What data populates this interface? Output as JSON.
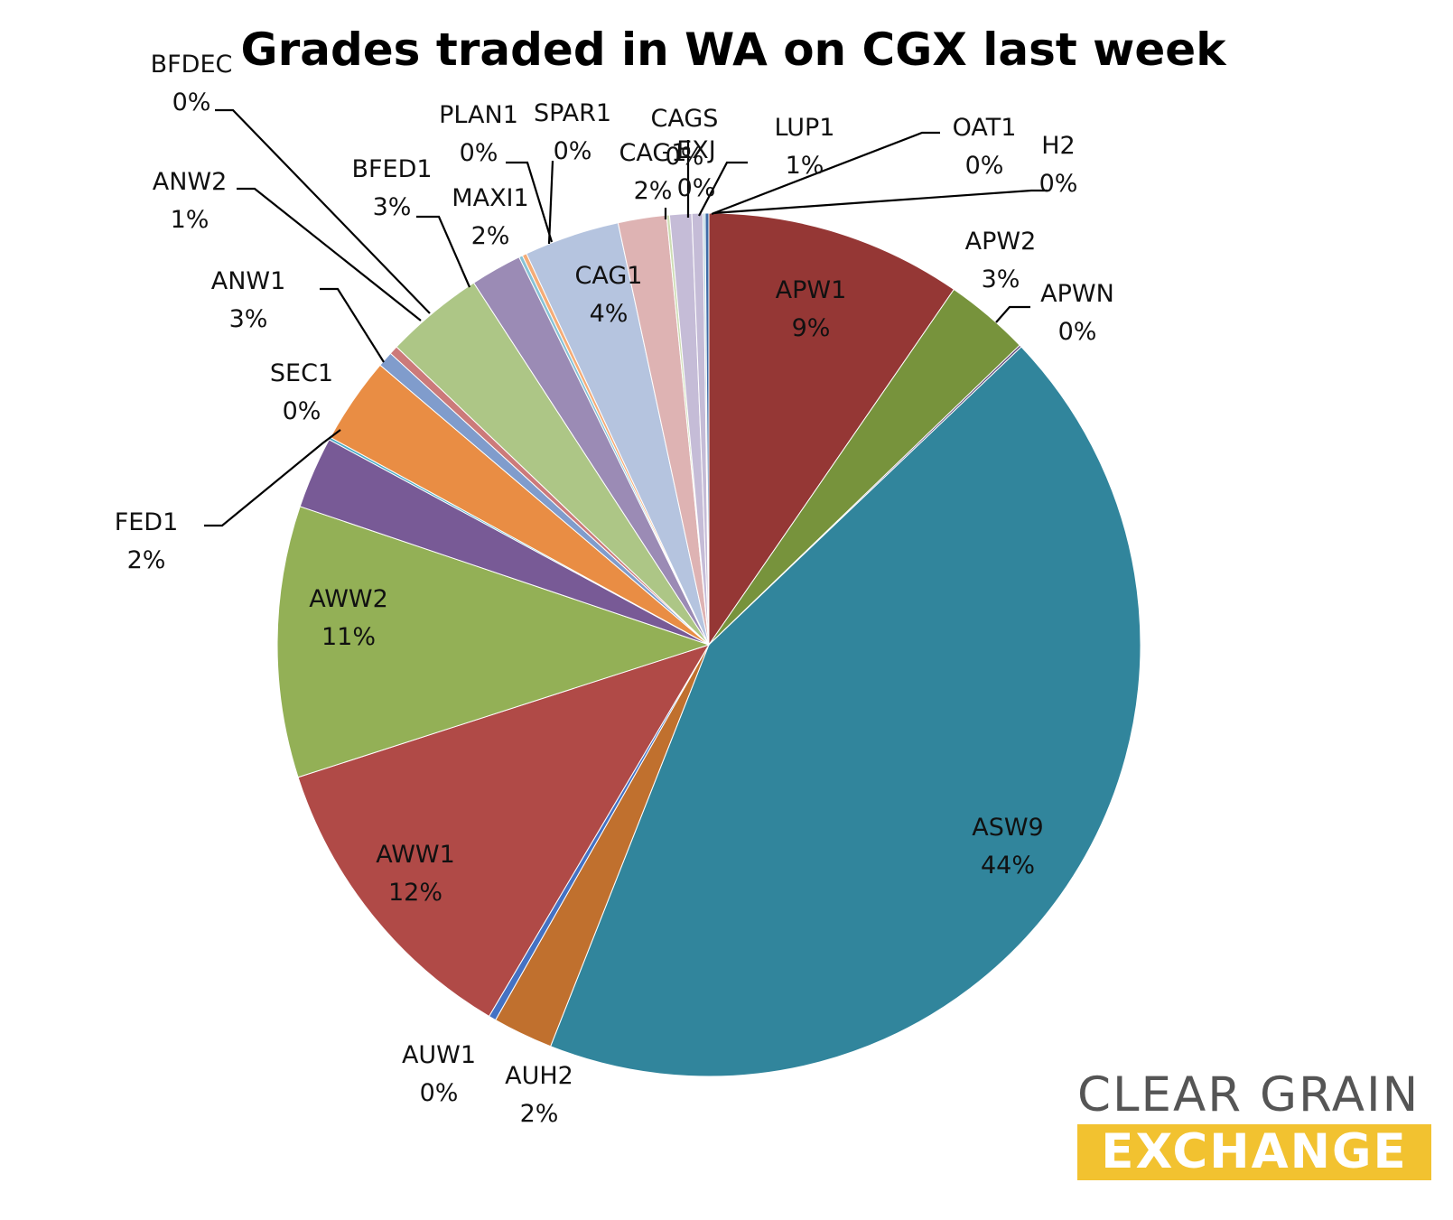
{
  "chart_data": {
    "type": "pie",
    "title": "Grades traded in WA on CGX last week",
    "slices": [
      {
        "name": "APW1",
        "value": 9,
        "label": "9%",
        "color": "#953735"
      },
      {
        "name": "APW2",
        "value": 3,
        "label": "3%",
        "color": "#77933c"
      },
      {
        "name": "APWN",
        "value": 0,
        "label": "0%",
        "color": "#5f497a"
      },
      {
        "name": "ASW9",
        "value": 44,
        "label": "44%",
        "color": "#31859c"
      },
      {
        "name": "AUH2",
        "value": 2,
        "label": "2%",
        "color": "#c0702e"
      },
      {
        "name": "AUW1",
        "value": 0,
        "label": "0%",
        "color": "#4472c4"
      },
      {
        "name": "AWW1",
        "value": 12,
        "label": "12%",
        "color": "#b04a47"
      },
      {
        "name": "AWW2",
        "value": 11,
        "label": "11%",
        "color": "#93b056"
      },
      {
        "name": "FED1",
        "value": 2,
        "label": "2%",
        "color": "#785a96"
      },
      {
        "name": "SEC1",
        "value": 0,
        "label": "0%",
        "color": "#4bacc6"
      },
      {
        "name": "ANW1",
        "value": 3,
        "label": "3%",
        "color": "#e98d44"
      },
      {
        "name": "ANW2",
        "value": 1,
        "label": "1%",
        "color": "#809ccc"
      },
      {
        "name": "BFDEC",
        "value": 0,
        "label": "0%",
        "color": "#cc7a7a"
      },
      {
        "name": "BFED1",
        "value": 3,
        "label": "3%",
        "color": "#adc686"
      },
      {
        "name": "MAXI1",
        "value": 2,
        "label": "2%",
        "color": "#9b8bb5"
      },
      {
        "name": "PLAN1",
        "value": 0,
        "label": "0%",
        "color": "#87c3d6"
      },
      {
        "name": "SPAR1",
        "value": 0,
        "label": "0%",
        "color": "#f5ac77"
      },
      {
        "name": "CAG1",
        "value": 4,
        "label": "4%",
        "color": "#b5c4df"
      },
      {
        "name": "CAG1",
        "value": 2,
        "label": "2%",
        "color": "#deb3b3"
      },
      {
        "name": "CAGS",
        "value": 0,
        "label": "0%",
        "color": "#cdddb3"
      },
      {
        "name": "EXJ",
        "value": 0,
        "label": "0%",
        "color": "#c5bcd7"
      },
      {
        "name": "LUP1",
        "value": 1,
        "label": "1%",
        "color": "#c5bcd7"
      },
      {
        "name": "OAT1",
        "value": 0,
        "label": "0%",
        "color": "#b3d3e0"
      },
      {
        "name": "H2",
        "value": 0,
        "label": "0%",
        "color": "#3f6ca8"
      }
    ],
    "legend": "none",
    "data_labels": "category name and percentage"
  },
  "logo": {
    "line1": "CLEAR GRAIN",
    "line2": "EXCHANGE",
    "text_color": "#555555",
    "accent_color": "#f2c230"
  }
}
